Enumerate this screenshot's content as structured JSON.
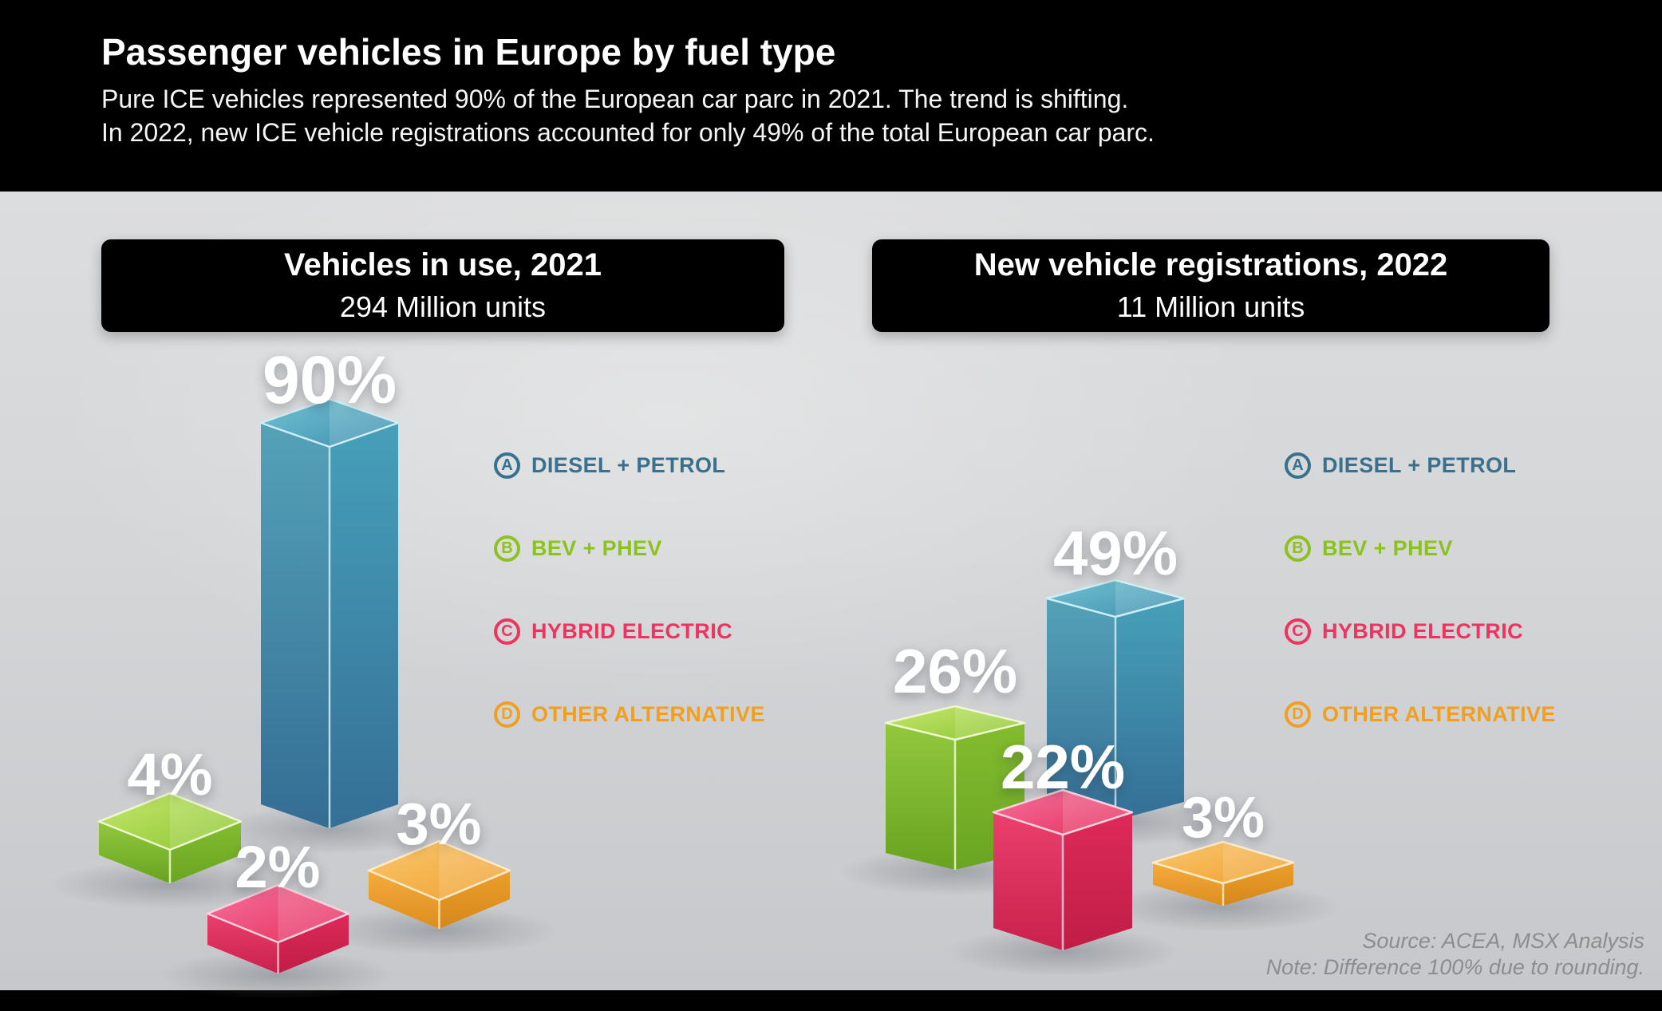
{
  "header": {
    "title": "Passenger vehicles in Europe by fuel type",
    "subtitle_line1": "Pure ICE vehicles represented 90% of the European car parc in 2021. The trend is shifting.",
    "subtitle_line2": "In 2022, new ICE vehicle registrations accounted for only 49% of the total European car parc."
  },
  "panels": [
    {
      "title": "Vehicles in use, 2021",
      "units": "294 Million units"
    },
    {
      "title": "New vehicle registrations, 2022",
      "units": "11 Million units"
    }
  ],
  "legend": {
    "items": [
      {
        "letter": "A",
        "label": "DIESEL + PETROL",
        "color": "#38708e"
      },
      {
        "letter": "B",
        "label": "BEV + PHEV",
        "color": "#8cc21c"
      },
      {
        "letter": "C",
        "label": "HYBRID ELECTRIC",
        "color": "#f0325f"
      },
      {
        "letter": "D",
        "label": "OTHER ALTERNATIVE",
        "color": "#f09f1f"
      }
    ]
  },
  "chart_data": [
    {
      "type": "bar",
      "title": "Vehicles in use, 2021",
      "subtitle": "294 Million units",
      "categories": [
        "Diesel + Petrol",
        "BEV + PHEV",
        "Hybrid Electric",
        "Other Alternative"
      ],
      "values": [
        90,
        4,
        2,
        3
      ],
      "unit": "%",
      "labels": [
        "90%",
        "4%",
        "2%",
        "3%"
      ],
      "legend_position": "right-of-bars"
    },
    {
      "type": "bar",
      "title": "New vehicle registrations, 2022",
      "subtitle": "11 Million units",
      "categories": [
        "Diesel + Petrol",
        "BEV + PHEV",
        "Hybrid Electric",
        "Other Alternative"
      ],
      "values": [
        49,
        26,
        22,
        3
      ],
      "unit": "%",
      "labels": [
        "49%",
        "26%",
        "22%",
        "3%"
      ],
      "legend_position": "right-of-bars"
    }
  ],
  "footer": {
    "source": "Source: ACEA, MSX Analysis",
    "note": "Note: Difference 100% due to rounding."
  },
  "colors": {
    "diesel_petrol": "#3f8fae",
    "bev_phev": "#8cc633",
    "hybrid_electric": "#e72e5c",
    "other_alternative": "#f0a02f",
    "header_bg": "#000000",
    "body_bg_top": "#dcddde",
    "body_bg_bottom": "#c6c8cb",
    "value_label": "#ffffff",
    "source_text": "#8b8e91"
  }
}
